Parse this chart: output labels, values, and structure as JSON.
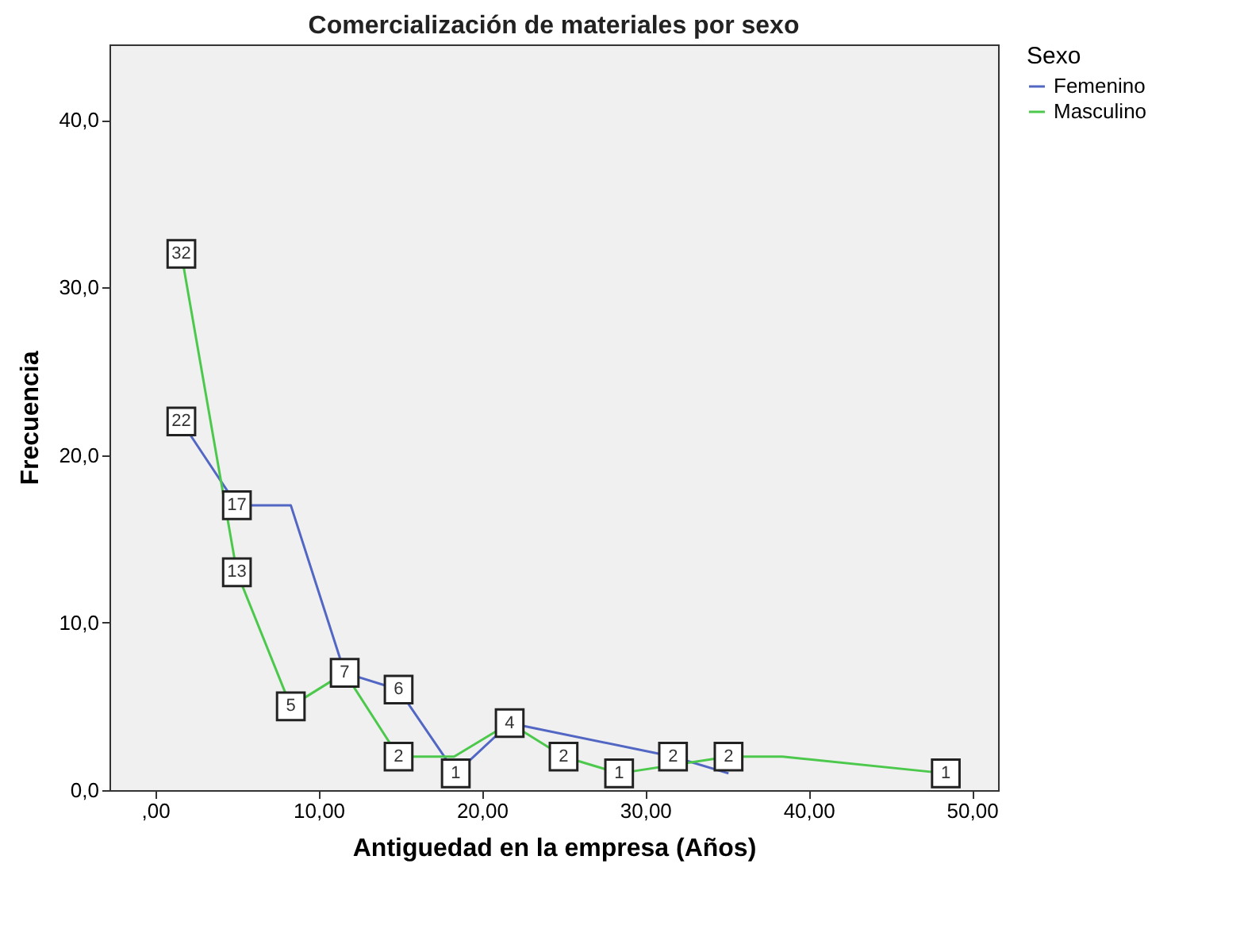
{
  "chart_data": {
    "type": "line",
    "title": "Comercialización de materiales por sexo",
    "xlabel": "Antiguedad en la empresa (Años)",
    "ylabel": "Frecuencia",
    "legend_title": "Sexo",
    "legend": "right",
    "grid": false,
    "line_style": "solid",
    "xlim": [
      -2.8,
      51.6
    ],
    "xticks": [
      {
        "value": 0,
        "label": ",00"
      },
      {
        "value": 10,
        "label": "10,00"
      },
      {
        "value": 20,
        "label": "20,00"
      },
      {
        "value": 30,
        "label": "30,00"
      },
      {
        "value": 40,
        "label": "40,00"
      },
      {
        "value": 50,
        "label": "50,00"
      }
    ],
    "ylim": [
      0,
      44.5
    ],
    "yticks": [
      {
        "value": 0,
        "label": "0,0"
      },
      {
        "value": 10,
        "label": "10,0"
      },
      {
        "value": 20,
        "label": "20,0"
      },
      {
        "value": 30,
        "label": "30,0"
      },
      {
        "value": 40,
        "label": "40,0"
      }
    ],
    "series": [
      {
        "name": "Femenino",
        "color": "#5266c4",
        "x": [
          1.6,
          5.0,
          8.3,
          11.6,
          14.9,
          18.4,
          21.7,
          31.7,
          35.1
        ],
        "values": [
          22,
          17,
          17,
          7,
          6,
          1,
          4,
          2,
          1
        ],
        "value_labels": [
          "22",
          "17",
          null,
          "7",
          "6",
          "1",
          "4",
          "2",
          null
        ]
      },
      {
        "name": "Masculino",
        "color": "#4cc94c",
        "x": [
          1.6,
          5.0,
          8.3,
          11.6,
          14.9,
          18.3,
          21.7,
          25.0,
          28.4,
          35.1,
          38.4,
          48.4
        ],
        "values": [
          32,
          13,
          5,
          7,
          2,
          2,
          4,
          2,
          1,
          2,
          2,
          1
        ],
        "value_labels": [
          "32",
          "13",
          "5",
          null,
          "2",
          null,
          null,
          "2",
          "1",
          "2",
          null,
          "1"
        ]
      }
    ]
  }
}
